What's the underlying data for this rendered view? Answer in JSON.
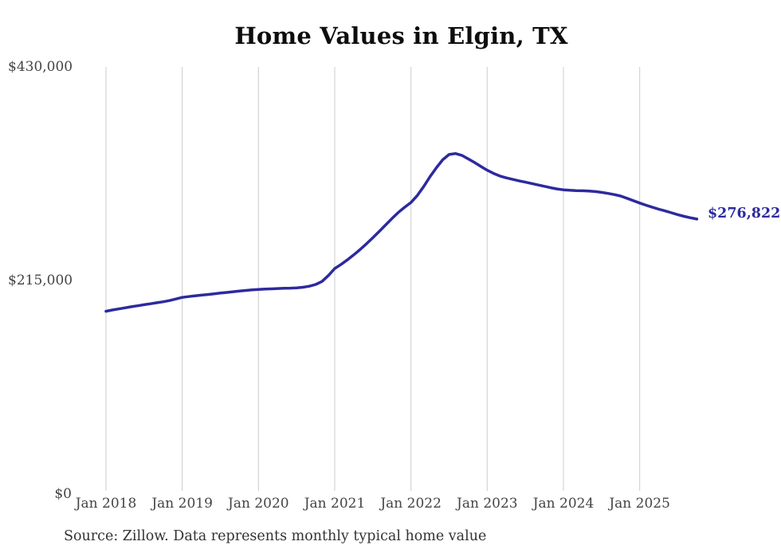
{
  "title": "Home Values in Elgin, TX",
  "source_note": "Source: Zillow. Data represents monthly typical home value",
  "colors": {
    "background": "#ffffff",
    "line": "#2d2a9e",
    "grid": "#cccccc",
    "tick_text": "#444444",
    "title_text": "#0d0d0d",
    "source_text": "#333333"
  },
  "chart_data": {
    "type": "line",
    "title": "Home Values in Elgin, TX",
    "xlabel": "",
    "ylabel": "",
    "grid": "vertical-only",
    "legend": "none",
    "ylim": [
      0,
      430000
    ],
    "y_ticks": [
      {
        "label": "$0",
        "value": 0
      },
      {
        "label": "$215,000",
        "value": 215000
      },
      {
        "label": "$430,000",
        "value": 430000
      }
    ],
    "x_tick_labels": [
      "Jan 2018",
      "Jan 2019",
      "Jan 2020",
      "Jan 2021",
      "Jan 2022",
      "Jan 2023",
      "Jan 2024",
      "Jan 2025"
    ],
    "x_tick_month_indices": [
      0,
      12,
      24,
      36,
      48,
      60,
      72,
      84
    ],
    "x_start_month": "2018-01",
    "x_end_month": "2025-10",
    "final_value": 276822,
    "final_value_label": "$276,822",
    "series": [
      {
        "name": "Typical home value (monthly)",
        "values": [
          184000,
          185300,
          186400,
          187500,
          188600,
          189600,
          190600,
          191600,
          192600,
          193600,
          194800,
          196400,
          198000,
          198800,
          199500,
          200200,
          200900,
          201600,
          202300,
          203000,
          203700,
          204400,
          205000,
          205500,
          206000,
          206300,
          206600,
          206900,
          207100,
          207300,
          207600,
          208200,
          209200,
          211000,
          214000,
          220000,
          227000,
          231200,
          235800,
          240800,
          246200,
          252000,
          258000,
          264300,
          270800,
          277300,
          283400,
          288700,
          293500,
          300500,
          309500,
          319500,
          328500,
          336500,
          341800,
          342800,
          341000,
          337500,
          333800,
          329800,
          326000,
          322800,
          320200,
          318300,
          316800,
          315400,
          314000,
          312600,
          311200,
          309800,
          308400,
          307200,
          306300,
          305800,
          305500,
          305300,
          305000,
          304500,
          303700,
          302700,
          301500,
          300000,
          297800,
          295400,
          293000,
          290800,
          288700,
          286800,
          285000,
          283200,
          281300,
          279600,
          278100,
          276822
        ]
      }
    ]
  }
}
